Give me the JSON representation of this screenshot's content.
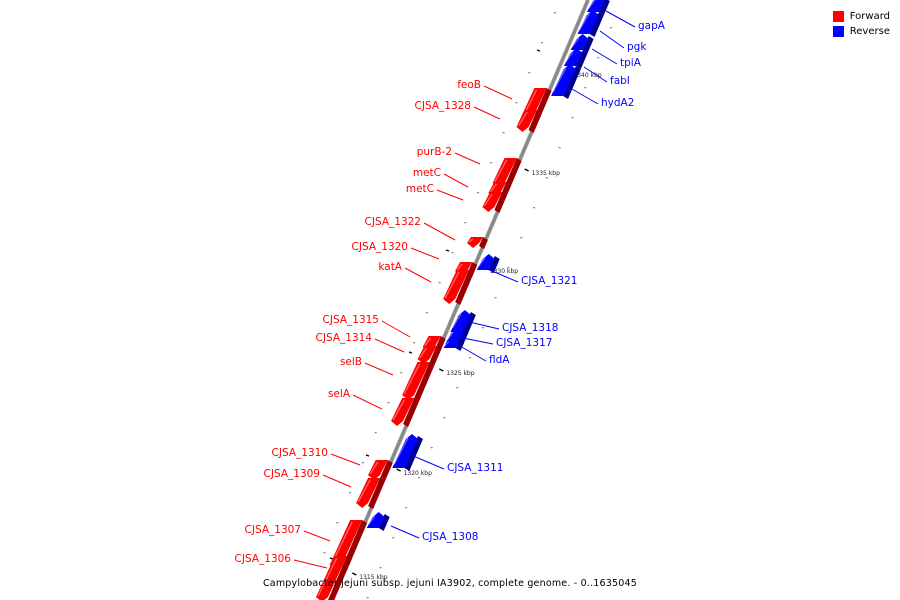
{
  "caption": "Campylobacter jejuni subsp. jejuni IA3902, complete genome. - 0..1635045",
  "legend": [
    {
      "label": "Forward",
      "color": "#ff0000"
    },
    {
      "label": "Reverse",
      "color": "#0000ff"
    }
  ],
  "colors": {
    "forward": "#ff0000",
    "reverse": "#0000ff",
    "backbone": "#888888"
  },
  "ticks": [
    {
      "label": "1315 kbp"
    },
    {
      "label": "1320 kbp"
    },
    {
      "label": "1325 kbp"
    },
    {
      "label": "1330 kbp"
    },
    {
      "label": "1335 kbp"
    },
    {
      "label": "1340 kbp"
    }
  ],
  "genes": [
    {
      "name": "gapA",
      "strand": "reverse"
    },
    {
      "name": "pgk",
      "strand": "reverse"
    },
    {
      "name": "tpiA",
      "strand": "reverse"
    },
    {
      "name": "fabI",
      "strand": "reverse"
    },
    {
      "name": "hydA2",
      "strand": "reverse"
    },
    {
      "name": "feoB",
      "strand": "forward"
    },
    {
      "name": "CJSA_1328",
      "strand": "forward"
    },
    {
      "name": "purB-2",
      "strand": "forward"
    },
    {
      "name": "metC",
      "strand": "forward"
    },
    {
      "name": "metC",
      "strand": "forward"
    },
    {
      "name": "CJSA_1322",
      "strand": "forward"
    },
    {
      "name": "CJSA_1320",
      "strand": "forward"
    },
    {
      "name": "katA",
      "strand": "forward"
    },
    {
      "name": "CJSA_1321",
      "strand": "reverse"
    },
    {
      "name": "CJSA_1318",
      "strand": "reverse"
    },
    {
      "name": "CJSA_1317",
      "strand": "reverse"
    },
    {
      "name": "fldA",
      "strand": "reverse"
    },
    {
      "name": "CJSA_1315",
      "strand": "forward"
    },
    {
      "name": "CJSA_1314",
      "strand": "forward"
    },
    {
      "name": "selB",
      "strand": "forward"
    },
    {
      "name": "selA",
      "strand": "forward"
    },
    {
      "name": "CJSA_1311",
      "strand": "reverse"
    },
    {
      "name": "CJSA_1310",
      "strand": "forward"
    },
    {
      "name": "CJSA_1309",
      "strand": "forward"
    },
    {
      "name": "CJSA_1308",
      "strand": "reverse"
    },
    {
      "name": "CJSA_1307",
      "strand": "forward"
    },
    {
      "name": "CJSA_1306",
      "strand": "forward"
    }
  ]
}
